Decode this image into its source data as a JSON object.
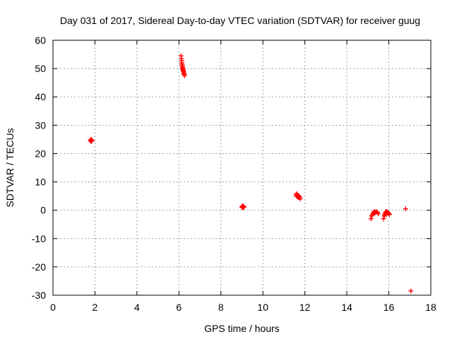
{
  "chart_data": {
    "type": "scatter",
    "title": "Day 031 of 2017, Sidereal Day-to-day VTEC variation (SDTVAR) for receiver guug",
    "xlabel": "GPS time / hours",
    "ylabel": "SDTVAR / TECUs",
    "xlim": [
      0,
      18
    ],
    "ylim": [
      -30,
      60
    ],
    "xticks": [
      0,
      2,
      4,
      6,
      8,
      10,
      12,
      14,
      16,
      18
    ],
    "yticks": [
      -30,
      -20,
      -10,
      0,
      10,
      20,
      30,
      40,
      50,
      60
    ],
    "grid": true,
    "marker": "plus",
    "marker_color": "#ff0000",
    "series": [
      {
        "x": [
          1.78,
          1.8,
          1.82,
          1.84,
          1.86,
          6.1,
          6.12,
          6.13,
          6.14,
          6.15,
          6.16,
          6.17,
          6.18,
          6.19,
          6.2,
          6.21,
          6.22,
          6.23,
          6.24,
          6.25,
          6.27,
          9.0,
          9.02,
          9.04,
          9.06,
          9.08,
          9.1,
          11.58,
          11.6,
          11.62,
          11.65,
          11.68,
          11.7,
          11.72,
          11.75,
          11.78,
          15.15,
          15.18,
          15.22,
          15.26,
          15.3,
          15.33,
          15.36,
          15.4,
          15.45,
          15.5,
          15.75,
          15.78,
          15.8,
          15.83,
          15.86,
          15.88,
          15.9,
          15.93,
          15.96,
          16.0,
          16.03,
          16.8,
          17.05
        ],
        "y": [
          24.5,
          25.0,
          24.3,
          24.8,
          24.6,
          54.5,
          53.5,
          52.8,
          52.0,
          51.5,
          51.0,
          50.5,
          50.2,
          49.8,
          49.5,
          49.2,
          49.0,
          48.5,
          48.2,
          48.0,
          47.5,
          1.0,
          1.5,
          1.2,
          1.0,
          1.4,
          1.1,
          5.5,
          5.0,
          5.8,
          4.8,
          5.2,
          4.5,
          5.0,
          4.6,
          4.0,
          -3.0,
          -2.0,
          -1.5,
          -1.0,
          -0.5,
          -1.0,
          -0.8,
          -0.5,
          -0.8,
          -1.2,
          -3.0,
          -2.0,
          -1.5,
          -1.0,
          -0.5,
          -1.5,
          -0.5,
          -1.0,
          -0.8,
          -1.2,
          -1.5,
          0.5,
          -28.5
        ]
      }
    ]
  }
}
